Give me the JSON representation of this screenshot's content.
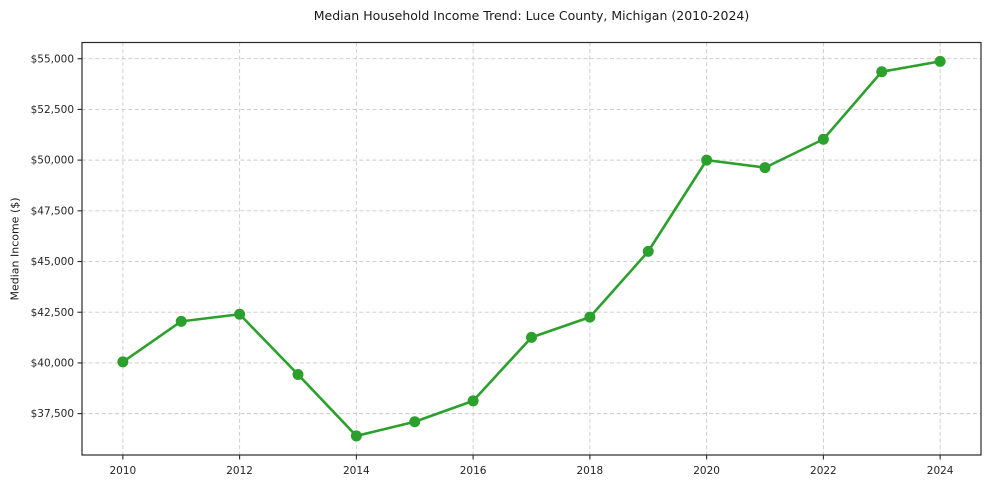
{
  "chart": {
    "title": "Median Household Income Trend: Luce County, Michigan (2010-2024)",
    "ylabel": "Median Income ($)"
  },
  "chart_data": {
    "type": "line",
    "title": "Median Household Income Trend: Luce County, Michigan (2010-2024)",
    "xlabel": "",
    "ylabel": "Median Income ($)",
    "x": [
      2010,
      2011,
      2012,
      2013,
      2014,
      2015,
      2016,
      2017,
      2018,
      2019,
      2020,
      2021,
      2022,
      2023,
      2024
    ],
    "series": [
      {
        "name": "Median Household Income",
        "values": [
          40050,
          42050,
          42400,
          39430,
          36400,
          37100,
          38130,
          41260,
          42260,
          45500,
          50000,
          49630,
          51030,
          54360,
          54870
        ]
      }
    ],
    "x_ticks": [
      2010,
      2012,
      2014,
      2016,
      2018,
      2020,
      2022,
      2024
    ],
    "x_tick_labels": [
      "2010",
      "2012",
      "2014",
      "2016",
      "2018",
      "2020",
      "2022",
      "2024"
    ],
    "y_ticks": [
      37500,
      40000,
      42500,
      45000,
      47500,
      50000,
      52500,
      55000
    ],
    "y_tick_labels": [
      "$37,500",
      "$40,000",
      "$42,500",
      "$45,000",
      "$47,500",
      "$50,000",
      "$52,500",
      "$55,000"
    ],
    "xlim": [
      2009.3,
      2024.7
    ],
    "ylim": [
      35460,
      55800
    ],
    "grid": true,
    "grid_style": "dashed",
    "legend": "none",
    "line_color": "#2ca02c",
    "marker": "circle",
    "grid_color": "#c9c9c9",
    "spine_color": "#2a2a2a"
  }
}
